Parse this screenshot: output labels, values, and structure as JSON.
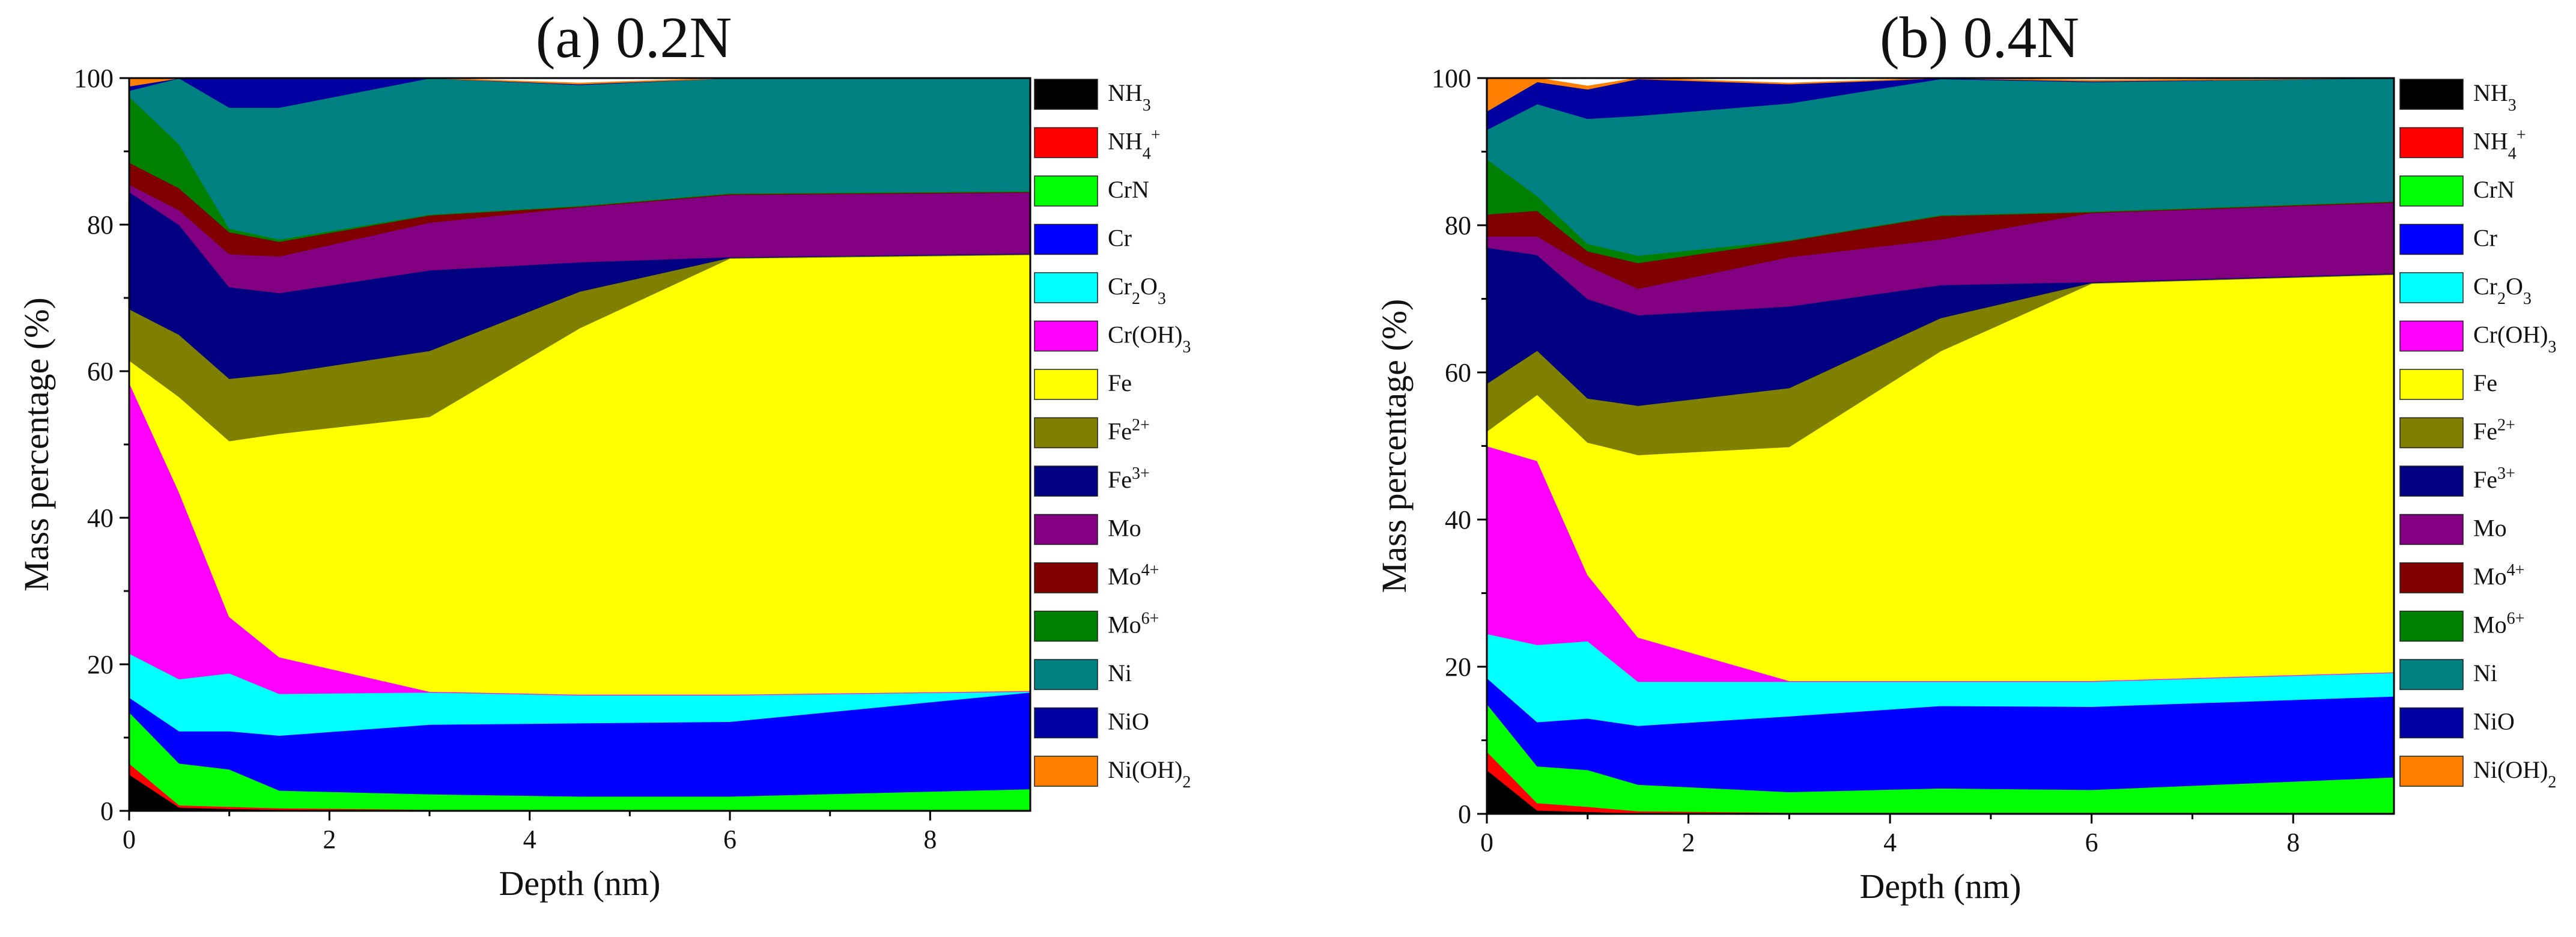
{
  "chart_data": [
    {
      "type": "area",
      "stacked": true,
      "title": "(a) 0.2N",
      "xlabel": "Depth (nm)",
      "ylabel": "Mass percentage (%)",
      "xlim": [
        0,
        9
      ],
      "ylim": [
        0,
        100
      ],
      "xticks": [
        0,
        2,
        4,
        6,
        8
      ],
      "yticks": [
        0,
        20,
        40,
        60,
        80,
        100
      ],
      "x": [
        0,
        0.5,
        1,
        1.5,
        3,
        4.5,
        6,
        9
      ],
      "series": [
        {
          "name": "NH3",
          "label": "NH",
          "sub": "3",
          "sup": "",
          "color": "#000000",
          "values": [
            5,
            0.5,
            0.3,
            0.2,
            0.1,
            0.1,
            0.1,
            0.1
          ]
        },
        {
          "name": "NH4+",
          "label": "NH",
          "sub": "4",
          "sup": "+",
          "color": "#ff0000",
          "values": [
            1.5,
            0.3,
            0.3,
            0.2,
            0.1,
            0.1,
            0.1,
            0.1
          ]
        },
        {
          "name": "CrN",
          "label": "CrN",
          "sub": "",
          "sup": "",
          "color": "#00ff00",
          "values": [
            7,
            5.7,
            5.1,
            2.4,
            2.1,
            1.8,
            1.8,
            2.8
          ]
        },
        {
          "name": "Cr",
          "label": "Cr",
          "sub": "",
          "sup": "",
          "color": "#0000ff",
          "values": [
            2,
            4.4,
            5.2,
            7.5,
            9.5,
            10,
            10.2,
            13.2
          ]
        },
        {
          "name": "Cr2O3",
          "label": "Cr",
          "sub": "2",
          "sup": "",
          "color": "#00ffff",
          "label2": "O",
          "sub2": "3",
          "values": [
            6,
            7.1,
            7.9,
            5.7,
            4.4,
            3.8,
            3.6,
            0.1
          ]
        },
        {
          "name": "Cr(OH)3",
          "label": "Cr(OH)",
          "sub": "3",
          "sup": "",
          "color": "#ff00ff",
          "values": [
            37,
            25.5,
            7.7,
            5,
            0.1,
            0.1,
            0.1,
            0.1
          ]
        },
        {
          "name": "Fe",
          "label": "Fe",
          "sub": "",
          "sup": "",
          "color": "#ffff00",
          "values": [
            3,
            13,
            24,
            30.5,
            37.5,
            50,
            59.5,
            59.5
          ]
        },
        {
          "name": "Fe2+",
          "label": "Fe",
          "sub": "",
          "sup": "2+",
          "color": "#808000",
          "values": [
            7,
            8.5,
            8.5,
            8.2,
            9,
            5,
            0.1,
            0.1
          ]
        },
        {
          "name": "Fe3+",
          "label": "Fe",
          "sub": "",
          "sup": "3+",
          "color": "#000080",
          "values": [
            16,
            15,
            12.5,
            11,
            11,
            4,
            0.1,
            0.1
          ]
        },
        {
          "name": "Mo",
          "label": "Mo",
          "sub": "",
          "sup": "",
          "color": "#800080",
          "values": [
            1,
            2,
            4.5,
            5,
            6.5,
            7.5,
            8.5,
            8.3
          ]
        },
        {
          "name": "Mo4+",
          "label": "Mo",
          "sub": "",
          "sup": "4+",
          "color": "#800000",
          "values": [
            3,
            3,
            3,
            2,
            1,
            0.1,
            0.1,
            0.1
          ]
        },
        {
          "name": "Mo6+",
          "label": "Mo",
          "sub": "",
          "sup": "6+",
          "color": "#008000",
          "values": [
            9,
            6,
            0.5,
            0.3,
            0.1,
            0.1,
            0.1,
            0.1
          ]
        },
        {
          "name": "Ni",
          "label": "Ni",
          "sub": "",
          "sup": "",
          "color": "#008080",
          "values": [
            0.8,
            12.7,
            16.5,
            18,
            18.6,
            16.5,
            15.9,
            15.6
          ]
        },
        {
          "name": "NiO",
          "label": "NiO",
          "sub": "",
          "sup": "",
          "color": "#0000a0",
          "values": [
            0.6,
            1,
            4,
            4,
            0.1,
            0.1,
            0.1,
            0.1
          ]
        },
        {
          "name": "Ni(OH)2",
          "label": "Ni(OH)",
          "sub": "2",
          "sup": "",
          "color": "#ff8000",
          "values": [
            1.6,
            0.5,
            0.1,
            0.1,
            0.1,
            0.1,
            0.1,
            0.1
          ]
        }
      ]
    },
    {
      "type": "area",
      "stacked": true,
      "title": "(b) 0.4N",
      "xlabel": "Depth (nm)",
      "ylabel": "Mass percentage (%)",
      "xlim": [
        0,
        9
      ],
      "ylim": [
        0,
        100
      ],
      "xticks": [
        0,
        2,
        4,
        6,
        8
      ],
      "yticks": [
        0,
        20,
        40,
        60,
        80,
        100
      ],
      "x": [
        0,
        0.5,
        1,
        1.5,
        3,
        4.5,
        6,
        9
      ],
      "series": [
        {
          "name": "NH3",
          "label": "NH",
          "sub": "3",
          "sup": "",
          "color": "#000000",
          "values": [
            6,
            0.5,
            0.3,
            0.1,
            0.1,
            0.1,
            0.1,
            0.1
          ]
        },
        {
          "name": "NH4+",
          "label": "NH",
          "sub": "4",
          "sup": "+",
          "color": "#ff0000",
          "values": [
            2.5,
            1,
            0.7,
            0.3,
            0.1,
            0.1,
            0.1,
            0.1
          ]
        },
        {
          "name": "CrN",
          "label": "CrN",
          "sub": "",
          "sup": "",
          "color": "#00ff00",
          "values": [
            6.5,
            5,
            5,
            3.6,
            2.8,
            3.3,
            3.1,
            4.8
          ]
        },
        {
          "name": "Cr",
          "label": "Cr",
          "sub": "",
          "sup": "",
          "color": "#0000ff",
          "values": [
            3.5,
            6,
            7,
            8,
            10.3,
            11.2,
            11.3,
            11
          ]
        },
        {
          "name": "Cr2O3",
          "label": "Cr",
          "sub": "2",
          "sup": "",
          "color": "#00ffff",
          "label2": "O",
          "sub2": "3",
          "values": [
            6,
            10.5,
            10.5,
            6,
            4.7,
            3.3,
            3.4,
            3.2
          ]
        },
        {
          "name": "Cr(OH)3",
          "label": "Cr(OH)",
          "sub": "3",
          "sup": "",
          "color": "#ff00ff",
          "values": [
            25.5,
            25,
            9,
            6,
            0.1,
            0.1,
            0.1,
            0.1
          ]
        },
        {
          "name": "Fe",
          "label": "Fe",
          "sub": "",
          "sup": "",
          "color": "#ffff00",
          "values": [
            2,
            9,
            18,
            24.8,
            31.8,
            44.8,
            54,
            54
          ]
        },
        {
          "name": "Fe2+",
          "label": "Fe",
          "sub": "",
          "sup": "2+",
          "color": "#808000",
          "values": [
            6.5,
            6,
            6,
            6.7,
            8,
            4.5,
            0.1,
            0.1
          ]
        },
        {
          "name": "Fe3+",
          "label": "Fe",
          "sub": "",
          "sup": "3+",
          "color": "#000080",
          "values": [
            18.5,
            13,
            13.5,
            12.3,
            11.1,
            4.5,
            0.1,
            0.1
          ]
        },
        {
          "name": "Mo",
          "label": "Mo",
          "sub": "",
          "sup": "",
          "color": "#800080",
          "values": [
            1.5,
            2.5,
            4.5,
            3.6,
            6.7,
            6.2,
            9.4,
            9.6
          ]
        },
        {
          "name": "Mo4+",
          "label": "Mo",
          "sub": "",
          "sup": "4+",
          "color": "#800000",
          "values": [
            3,
            3.5,
            2,
            3.5,
            2.2,
            3.2,
            0.1,
            0.1
          ]
        },
        {
          "name": "Mo6+",
          "label": "Mo",
          "sub": "",
          "sup": "6+",
          "color": "#008000",
          "values": [
            7.5,
            2,
            1,
            1,
            0.1,
            0.1,
            0.1,
            0.1
          ]
        },
        {
          "name": "Ni",
          "label": "Ni",
          "sub": "",
          "sup": "",
          "color": "#008080",
          "values": [
            4,
            12.5,
            17,
            19,
            18.6,
            18.5,
            17.6,
            16.7
          ]
        },
        {
          "name": "NiO",
          "label": "NiO",
          "sub": "",
          "sup": "",
          "color": "#0000a0",
          "values": [
            2.5,
            3,
            4,
            5,
            2.6,
            0.1,
            0.1,
            0.1
          ]
        },
        {
          "name": "Ni(OH)2",
          "label": "Ni(OH)",
          "sub": "2",
          "sup": "",
          "color": "#ff8000",
          "values": [
            5,
            0.5,
            0.4,
            0.2,
            0.1,
            0.1,
            0.1,
            0.1
          ]
        }
      ]
    }
  ]
}
